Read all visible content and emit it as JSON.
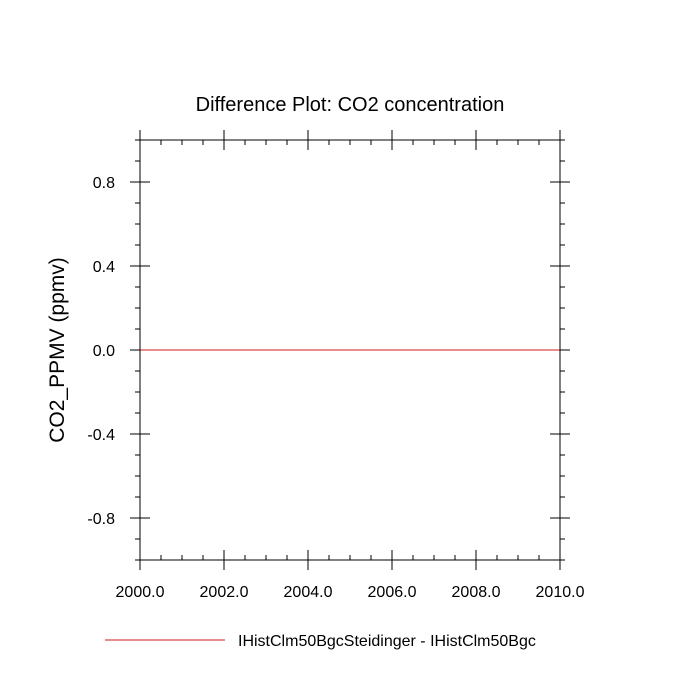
{
  "chart_data": {
    "type": "line",
    "title": "Difference Plot: CO2 concentration",
    "xlabel": "",
    "ylabel": "CO2_PPMV  (ppmv)",
    "xlim": [
      2000.0,
      2010.0
    ],
    "ylim": [
      -1.0,
      1.0
    ],
    "x_ticks": [
      2000.0,
      2002.0,
      2004.0,
      2006.0,
      2008.0,
      2010.0
    ],
    "x_tick_labels": [
      "2000.0",
      "2002.0",
      "2004.0",
      "2006.0",
      "2008.0",
      "2010.0"
    ],
    "y_ticks": [
      -0.8,
      -0.4,
      0.0,
      0.4,
      0.8
    ],
    "y_tick_labels": [
      "-0.8",
      "-0.4",
      "0.0",
      "0.4",
      "0.8"
    ],
    "grid": false,
    "legend_position": "bottom",
    "series": [
      {
        "name": "IHistClm50BgcSteidinger - IHistClm50Bgc",
        "color": "#e06666",
        "x": [
          2000.0,
          2010.0
        ],
        "y": [
          0.0,
          0.0
        ]
      }
    ]
  }
}
